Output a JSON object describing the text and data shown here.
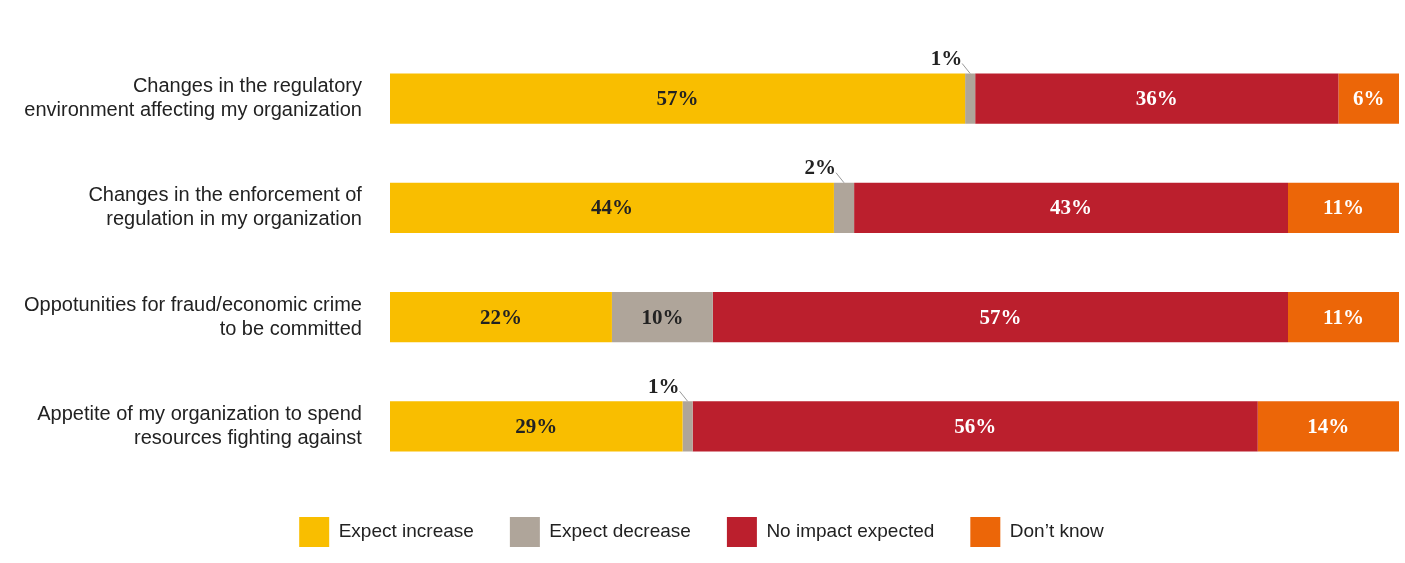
{
  "chart_data": {
    "type": "bar",
    "orientation": "horizontal",
    "stacked": true,
    "legend": "bottom",
    "tick_labels": "y",
    "categories": [
      "Changes in the regulatory\nenvironment affecting my organization",
      "Changes in the enforcement of\nregulation in my organization",
      "Oppotunities for fraud/economic crime\nto be committed",
      "Appetite of my organization to spend\nresources fighting against"
    ],
    "series": [
      {
        "name": "Expect increase",
        "color": "#f9be00",
        "values": [
          57,
          44,
          22,
          29
        ],
        "value_labels": [
          "57%",
          "44%",
          "22%",
          "29%"
        ]
      },
      {
        "name": "Expect decrease",
        "color": "#afa59a",
        "values": [
          1,
          2,
          10,
          1
        ],
        "value_labels": [
          "1%",
          "2%",
          "10%",
          "1%"
        ]
      },
      {
        "name": "No impact expected",
        "color": "#bb1f2d",
        "values": [
          36,
          43,
          57,
          56
        ],
        "value_labels": [
          "36%",
          "43%",
          "57%",
          "56%"
        ]
      },
      {
        "name": "Don’t know",
        "color": "#ec6608",
        "values": [
          6,
          11,
          11,
          14
        ],
        "value_labels": [
          "6%",
          "11%",
          "11%",
          "14%"
        ]
      }
    ]
  }
}
